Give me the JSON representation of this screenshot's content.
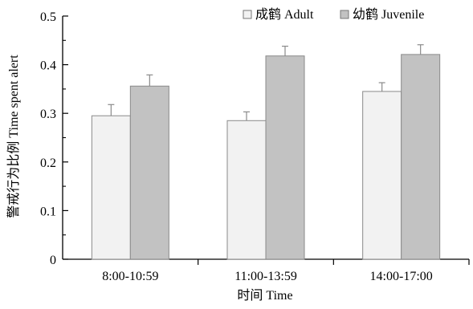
{
  "chart_data": {
    "type": "bar",
    "categories": [
      "8:00-10:59",
      "11:00-13:59",
      "14:00-17:00"
    ],
    "series": [
      {
        "name": "成鹤 Adult",
        "values": [
          0.295,
          0.285,
          0.345
        ],
        "errors": [
          0.023,
          0.018,
          0.018
        ],
        "color": "#f2f2f2"
      },
      {
        "name": "幼鹤 Juvenile",
        "values": [
          0.356,
          0.418,
          0.421
        ],
        "errors": [
          0.023,
          0.02,
          0.02
        ],
        "color": "#c2c2c2"
      }
    ],
    "xlabel": "时间 Time",
    "ylabel": "警戒行为比例 Time spent alert",
    "ylim": [
      0,
      0.5
    ],
    "yticks": [
      "0",
      "0.1",
      "0.2",
      "0.3",
      "0.4",
      "0.5"
    ],
    "grid": false,
    "legend_position": "top-right"
  }
}
